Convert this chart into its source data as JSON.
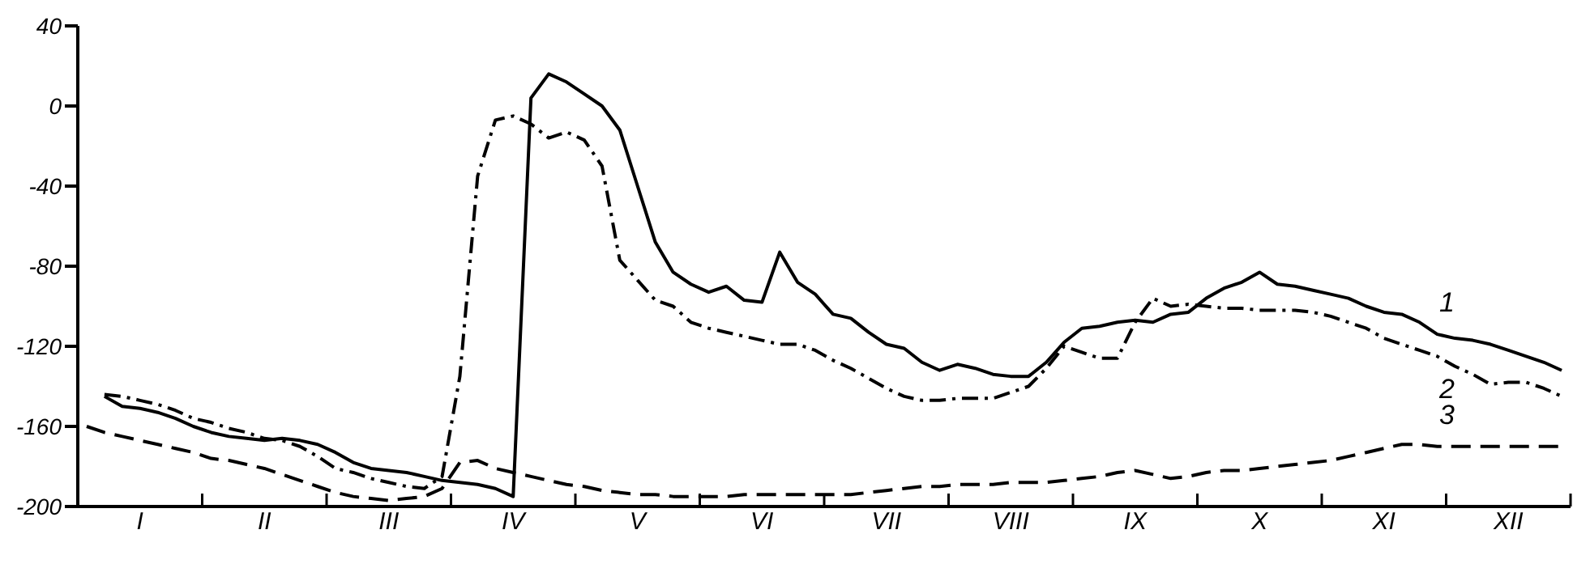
{
  "chart_data": {
    "type": "line",
    "categories": [
      null,
      null,
      null,
      "I",
      null,
      null,
      null,
      null,
      null,
      null,
      "II",
      null,
      null,
      null,
      null,
      null,
      null,
      "III",
      null,
      null,
      null,
      null,
      null,
      null,
      "IV",
      null,
      null,
      null,
      null,
      null,
      null,
      "V",
      null,
      null,
      null,
      null,
      null,
      null,
      "VI",
      null,
      null,
      null,
      null,
      null,
      null,
      "VII",
      null,
      null,
      null,
      null,
      null,
      null,
      "VIII",
      null,
      null,
      null,
      null,
      null,
      null,
      "IX",
      null,
      null,
      null,
      null,
      null,
      null,
      "X",
      null,
      null,
      null,
      null,
      null,
      null,
      "XI",
      null,
      null,
      null,
      null,
      null,
      null,
      "XII",
      null,
      null,
      null
    ],
    "ylim": [
      -200,
      40
    ],
    "yticks": [
      -200,
      -160,
      -120,
      -80,
      -40,
      0,
      40
    ],
    "grid": false,
    "legend": false,
    "marker": "none",
    "series": [
      {
        "name": "1",
        "color": "#000000",
        "line_style": "solid",
        "values": [
          null,
          -145,
          -150,
          -151,
          -153,
          -156,
          -160,
          -163,
          -165,
          -166,
          -167,
          -166,
          -167,
          -169,
          -173,
          -178,
          -181,
          -182,
          -183,
          -185,
          -187,
          -188,
          -189,
          -191,
          -195,
          4,
          16,
          12,
          6,
          0,
          -12,
          -40,
          -68,
          -83,
          -89,
          -93,
          -90,
          -97,
          -98,
          -73,
          -88,
          -94,
          -104,
          -106,
          -113,
          -119,
          -121,
          -128,
          -132,
          -129,
          -131,
          -134,
          -135,
          -135,
          -128,
          -118,
          -111,
          -110,
          -108,
          -107,
          -108,
          -104,
          -103,
          -96,
          -91,
          -88,
          -83,
          -89,
          -90,
          -92,
          -94,
          -96,
          -100,
          -103,
          -104,
          -108,
          -114,
          -116,
          -117,
          -119,
          -122,
          -125,
          -128,
          -132
        ]
      },
      {
        "name": "2",
        "color": "#000000",
        "line_style": "dotted",
        "values": [
          null,
          -144,
          -145,
          -147,
          -149,
          -152,
          -156,
          -158,
          -161,
          -163,
          -166,
          -167,
          -170,
          -175,
          -181,
          -183,
          -186,
          -188,
          -190,
          -191,
          -185,
          -135,
          -35,
          -7,
          -5,
          -9,
          -16,
          -13,
          -17,
          -30,
          -77,
          -87,
          -97,
          -100,
          -108,
          -111,
          -113,
          -115,
          -117,
          -119,
          -119,
          -122,
          -127,
          -131,
          -136,
          -141,
          -145,
          -147,
          -147,
          -146,
          -146,
          -146,
          -143,
          -140,
          -131,
          -120,
          -123,
          -126,
          -126,
          -108,
          -96,
          -100,
          -99,
          -100,
          -101,
          -101,
          -102,
          -102,
          -102,
          -103,
          -105,
          -108,
          -111,
          -116,
          -119,
          -122,
          -125,
          -130,
          -134,
          -139,
          -138,
          -138,
          -141,
          -145
        ]
      },
      {
        "name": "3",
        "color": "#000000",
        "line_style": "dashed",
        "values": [
          -160,
          -163,
          -165,
          -167,
          -169,
          -171,
          -173,
          -176,
          -177,
          -179,
          -181,
          -184,
          -187,
          -190,
          -193,
          -195,
          -196,
          -197,
          -196,
          -195,
          -191,
          -178,
          -177,
          -181,
          -183,
          -185,
          -187,
          -189,
          -190,
          -192,
          -193,
          -194,
          -194,
          -195,
          -195,
          -195,
          -195,
          -194,
          -194,
          -194,
          -194,
          -194,
          -194,
          -194,
          -193,
          -192,
          -191,
          -190,
          -190,
          -189,
          -189,
          -189,
          -188,
          -188,
          -188,
          -187,
          -186,
          -185,
          -183,
          -182,
          -184,
          -186,
          -185,
          -183,
          -182,
          -182,
          -181,
          -180,
          -179,
          -178,
          -177,
          -175,
          -173,
          -171,
          -169,
          -169,
          -170,
          -170,
          -170,
          -170,
          -170,
          -170,
          -170,
          -170
        ]
      }
    ]
  }
}
